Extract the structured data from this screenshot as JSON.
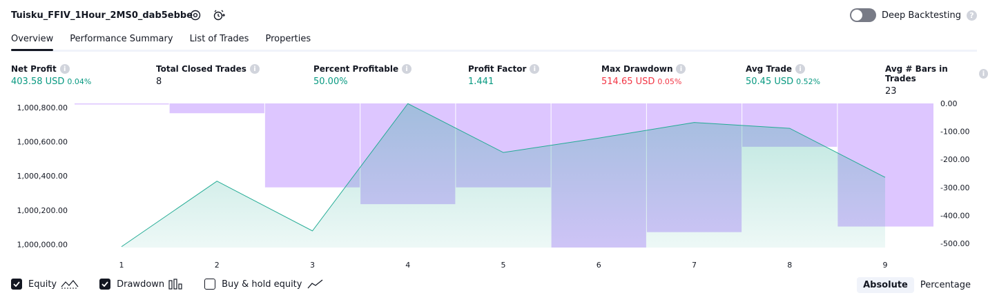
{
  "header": {
    "title": "Tuisku_FFIV_1Hour_2MS0_dab5ebbe",
    "deep_backtesting_label": "Deep Backtesting",
    "deep_backtesting_on": false
  },
  "tabs": [
    {
      "label": "Overview",
      "active": true
    },
    {
      "label": "Performance Summary",
      "active": false
    },
    {
      "label": "List of Trades",
      "active": false
    },
    {
      "label": "Properties",
      "active": false
    }
  ],
  "metrics": [
    {
      "label": "Net Profit",
      "value": "403.58 USD",
      "pct": "0.04%",
      "tone": "pos"
    },
    {
      "label": "Total Closed Trades",
      "value": "8",
      "pct": "",
      "tone": "plain"
    },
    {
      "label": "Percent Profitable",
      "value": "50.00%",
      "pct": "",
      "tone": "pos"
    },
    {
      "label": "Profit Factor",
      "value": "1.441",
      "pct": "",
      "tone": "pos"
    },
    {
      "label": "Max Drawdown",
      "value": "514.65 USD",
      "pct": "0.05%",
      "tone": "neg"
    },
    {
      "label": "Avg Trade",
      "value": "50.45 USD",
      "pct": "0.52%",
      "tone": "pos"
    },
    {
      "label": "Avg # Bars in Trades",
      "value": "23",
      "pct": "",
      "tone": "plain"
    }
  ],
  "chart_data": {
    "type": "line",
    "x": [
      1,
      2,
      3,
      4,
      5,
      6,
      7,
      8,
      9
    ],
    "left_axis_ticks": [
      "1,000,800.00",
      "1,000,600.00",
      "1,000,400.00",
      "1,000,200.00",
      "1,000,000.00"
    ],
    "right_axis_ticks": [
      "0.00",
      "-100.00",
      "-200.00",
      "-300.00",
      "-400.00",
      "-500.00"
    ],
    "ylim_left": [
      999995,
      1000835
    ],
    "ylim_right": [
      -515,
      0
    ],
    "series": [
      {
        "name": "Equity",
        "axis": "left",
        "values": [
          1000000,
          1000382,
          1000092,
          1000834,
          1000549,
          1000633,
          1000724,
          1000690,
          1000404
        ],
        "color": "#22ab94"
      },
      {
        "name": "Drawdown",
        "axis": "right",
        "values": [
          0,
          -35,
          -300,
          -360,
          -300,
          -515,
          -460,
          -155,
          -440
        ],
        "color": "#d1b3ff"
      }
    ]
  },
  "legend": {
    "equity_label": "Equity",
    "equity_checked": true,
    "drawdown_label": "Drawdown",
    "drawdown_checked": true,
    "buyhold_label": "Buy & hold equity",
    "buyhold_checked": false
  },
  "view_mode": {
    "absolute": "Absolute",
    "percentage": "Percentage",
    "selected": "absolute"
  }
}
